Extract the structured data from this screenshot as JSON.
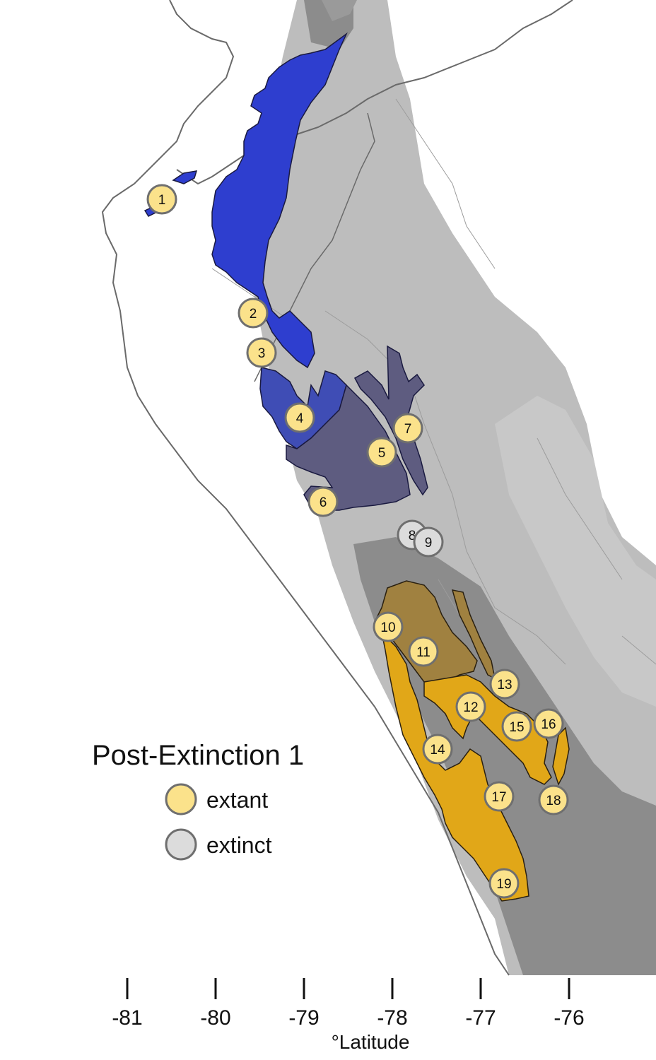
{
  "legend": {
    "title": "Post-Extinction 1",
    "items": [
      {
        "label": "extant",
        "fill": "#fbe28b"
      },
      {
        "label": "extinct",
        "fill": "#dcdcdc"
      }
    ]
  },
  "axis": {
    "title": "°Latitude",
    "ticks": [
      {
        "value": -81,
        "label": "-81"
      },
      {
        "value": -80,
        "label": "-80"
      },
      {
        "value": -79,
        "label": "-79"
      },
      {
        "value": -78,
        "label": "-78"
      },
      {
        "value": -77,
        "label": "-77"
      },
      {
        "value": -76,
        "label": "-76"
      }
    ]
  },
  "colors": {
    "marker_stroke": "#6f6f6f",
    "extant": "#fbe28b",
    "extinct": "#dcdcdc",
    "range_north": "#2e3ecf",
    "range_mid_blue": "#3f4db5",
    "range_mid_slate": "#5e5c80",
    "range_south_brown": "#a08140",
    "range_south_gold": "#e1a718",
    "elevation_mid": "#bdbdbd",
    "elevation_high": "#8c8c8c",
    "border": "#6a6a6a"
  },
  "sites": [
    {
      "id": "1",
      "status": "extant"
    },
    {
      "id": "2",
      "status": "extant"
    },
    {
      "id": "3",
      "status": "extant"
    },
    {
      "id": "4",
      "status": "extant"
    },
    {
      "id": "5",
      "status": "extant"
    },
    {
      "id": "6",
      "status": "extant"
    },
    {
      "id": "7",
      "status": "extant"
    },
    {
      "id": "8",
      "status": "extinct"
    },
    {
      "id": "9",
      "status": "extinct"
    },
    {
      "id": "10",
      "status": "extant"
    },
    {
      "id": "11",
      "status": "extant"
    },
    {
      "id": "12",
      "status": "extant"
    },
    {
      "id": "13",
      "status": "extant"
    },
    {
      "id": "14",
      "status": "extant"
    },
    {
      "id": "15",
      "status": "extant"
    },
    {
      "id": "16",
      "status": "extant"
    },
    {
      "id": "17",
      "status": "extant"
    },
    {
      "id": "18",
      "status": "extant"
    },
    {
      "id": "19",
      "status": "extant"
    }
  ]
}
